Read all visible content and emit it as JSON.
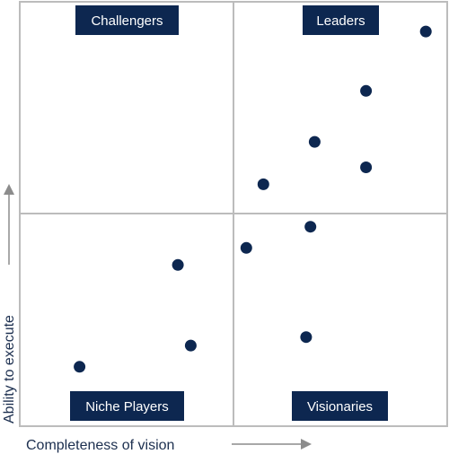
{
  "chart_data": {
    "type": "scatter",
    "title": "",
    "xlabel": "Completeness of vision",
    "ylabel": "Ability to execute",
    "xlim": [
      0,
      100
    ],
    "ylim": [
      0,
      100
    ],
    "grid": false,
    "quadrants": {
      "top_left": "Challengers",
      "top_right": "Leaders",
      "bottom_left": "Niche Players",
      "bottom_right": "Visionaries"
    },
    "points": [
      {
        "x": 95,
        "y": 93
      },
      {
        "x": 81,
        "y": 79
      },
      {
        "x": 69,
        "y": 67
      },
      {
        "x": 81,
        "y": 61
      },
      {
        "x": 57,
        "y": 57
      },
      {
        "x": 68,
        "y": 47
      },
      {
        "x": 53,
        "y": 42
      },
      {
        "x": 37,
        "y": 38
      },
      {
        "x": 67,
        "y": 21
      },
      {
        "x": 40,
        "y": 19
      },
      {
        "x": 14,
        "y": 14
      }
    ],
    "colors": {
      "point": "#0d2750",
      "label_bg": "#0d2750",
      "frame": "#bcbcbc",
      "arrow": "#8c8c8c",
      "text": "#1c2f4f"
    }
  }
}
